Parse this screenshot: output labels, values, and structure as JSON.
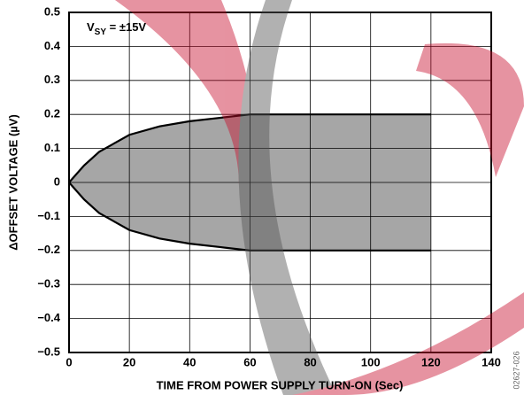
{
  "chart_data": {
    "type": "band",
    "xlabel": "TIME FROM POWER SUPPLY TURN-ON (Sec)",
    "ylabel": "ΔOFFSET VOLTAGE (µV)",
    "annotation": {
      "base": "V",
      "sub": "SY",
      "rest": " = ±15V"
    },
    "figure_code": "02627-026",
    "x": [
      0,
      5,
      10,
      20,
      30,
      40,
      50,
      60,
      80,
      100,
      120
    ],
    "series": [
      {
        "name": "upper",
        "color": "#000000",
        "values": [
          0,
          0.05,
          0.09,
          0.14,
          0.165,
          0.18,
          0.19,
          0.2,
          0.2,
          0.2,
          0.2
        ]
      },
      {
        "name": "lower",
        "color": "#000000",
        "values": [
          0,
          -0.05,
          -0.09,
          -0.14,
          -0.165,
          -0.18,
          -0.19,
          -0.2,
          -0.2,
          -0.2,
          -0.2
        ]
      }
    ],
    "fill": "#a6a6a6",
    "xlim": [
      0,
      140
    ],
    "xticks": [
      0,
      20,
      40,
      60,
      80,
      100,
      120,
      140
    ],
    "ylim": [
      -0.5,
      0.5
    ],
    "yticks": [
      {
        "value": -0.5,
        "label": "−0.5"
      },
      {
        "value": -0.4,
        "label": "−0.4"
      },
      {
        "value": -0.3,
        "label": "−0.3"
      },
      {
        "value": -0.2,
        "label": "−0.2"
      },
      {
        "value": -0.1,
        "label": "−0.1"
      },
      0,
      0.1,
      0.2,
      0.3,
      0.4,
      0.5
    ],
    "grid": true
  }
}
